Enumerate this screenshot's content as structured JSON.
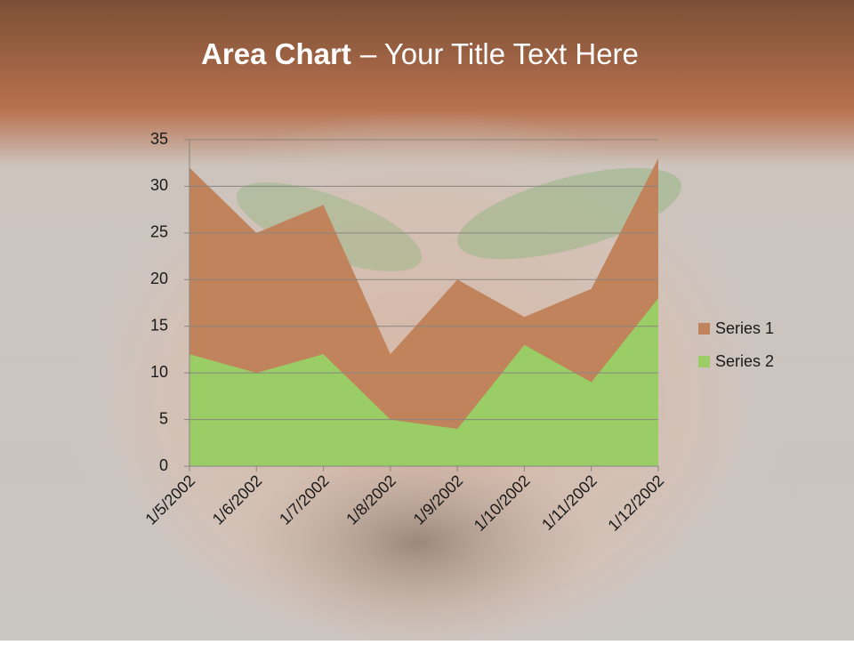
{
  "chart_data": {
    "type": "area",
    "title_parts": [
      "Area Chart",
      "– Your Title Text Here"
    ],
    "categories": [
      "1/5/2002",
      "1/6/2002",
      "1/7/2002",
      "1/8/2002",
      "1/9/2002",
      "1/10/2002",
      "1/11/2002",
      "1/12/2002"
    ],
    "series": [
      {
        "name": "Series 1",
        "color": "#c0835c",
        "values": [
          32,
          25,
          28,
          12,
          20,
          16,
          19,
          33
        ]
      },
      {
        "name": "Series 2",
        "color": "#9acd65",
        "values": [
          12,
          10,
          12,
          5,
          4,
          13,
          9,
          18
        ]
      }
    ],
    "ylim": [
      0,
      35
    ],
    "yticks": [
      0,
      5,
      10,
      15,
      20,
      25,
      30,
      35
    ],
    "grid": true,
    "legend": "right"
  }
}
